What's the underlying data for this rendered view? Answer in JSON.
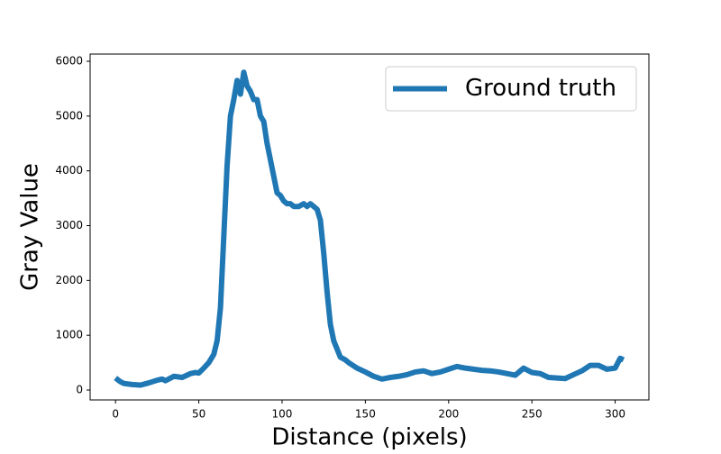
{
  "chart_data": {
    "type": "line",
    "xlabel": "Distance (pixels)",
    "ylabel": "Gray Value",
    "x": [
      0,
      3,
      5,
      10,
      15,
      20,
      25,
      28,
      30,
      35,
      40,
      45,
      48,
      50,
      53,
      56,
      59,
      61,
      63,
      65,
      67,
      69,
      71,
      73,
      75,
      77,
      79,
      81,
      83,
      85,
      87,
      89,
      91,
      93,
      95,
      97,
      99,
      101,
      103,
      105,
      107,
      110,
      113,
      115,
      117,
      119,
      121,
      123,
      125,
      127,
      129,
      131,
      133,
      135,
      138,
      140,
      145,
      150,
      155,
      160,
      165,
      170,
      175,
      180,
      185,
      190,
      195,
      200,
      205,
      210,
      215,
      220,
      225,
      230,
      235,
      240,
      245,
      250,
      255,
      260,
      265,
      270,
      275,
      280,
      285,
      290,
      295,
      300,
      303,
      305
    ],
    "series": [
      {
        "name": "Ground truth",
        "color": "#1f77b4",
        "values": [
          220,
          150,
          120,
          100,
          90,
          130,
          180,
          200,
          170,
          250,
          230,
          300,
          320,
          310,
          400,
          500,
          650,
          900,
          1500,
          2800,
          4100,
          5000,
          5300,
          5650,
          5400,
          5800,
          5550,
          5450,
          5300,
          5300,
          5000,
          4900,
          4500,
          4200,
          3900,
          3600,
          3550,
          3450,
          3400,
          3400,
          3350,
          3350,
          3400,
          3350,
          3400,
          3350,
          3300,
          3100,
          2500,
          1800,
          1200,
          900,
          750,
          600,
          550,
          500,
          400,
          330,
          250,
          200,
          230,
          250,
          280,
          330,
          350,
          300,
          330,
          380,
          430,
          400,
          380,
          360,
          350,
          330,
          300,
          270,
          400,
          320,
          300,
          230,
          220,
          210,
          280,
          350,
          450,
          450,
          380,
          400,
          580,
          550
        ]
      }
    ],
    "xlim": [
      -15.25,
      320.25
    ],
    "ylim": [
      -181,
      6132
    ],
    "xticks": [
      0,
      50,
      100,
      150,
      200,
      250,
      300
    ],
    "yticks": [
      0,
      1000,
      2000,
      3000,
      4000,
      5000,
      6000
    ],
    "legend": "upper right"
  }
}
